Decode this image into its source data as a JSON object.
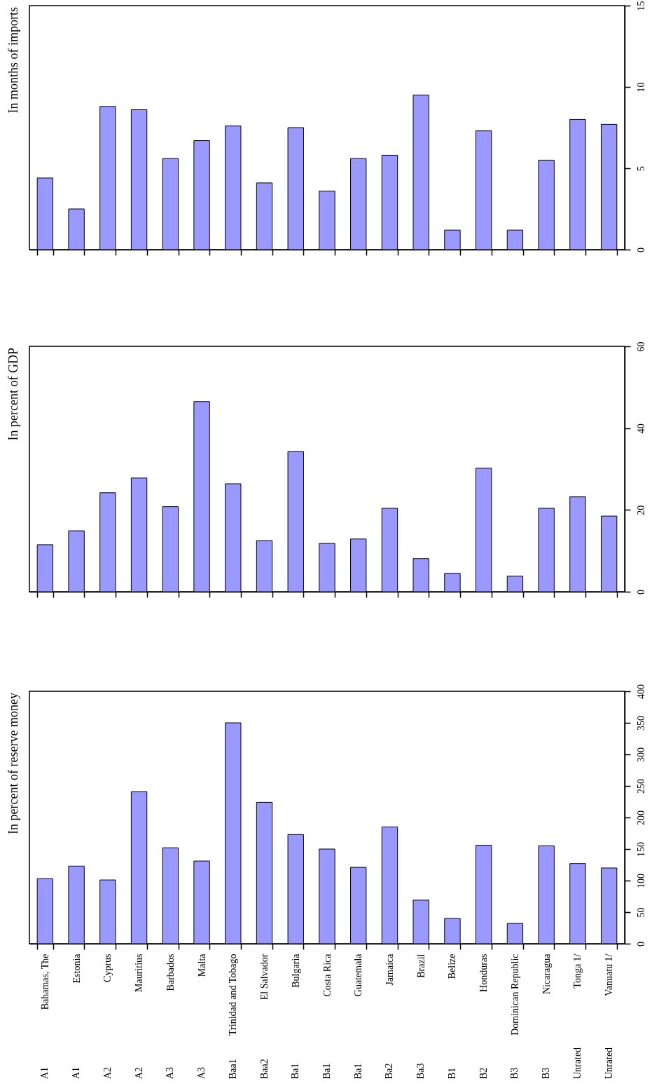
{
  "chart_data": [
    {
      "type": "bar",
      "ylabel": "In months of imports",
      "categories": [
        null,
        null,
        null,
        null,
        null,
        null,
        null,
        null,
        null,
        null,
        null,
        null,
        null,
        null,
        null,
        null,
        null,
        null,
        null
      ],
      "values": [
        4.4,
        2.5,
        8.8,
        8.6,
        5.6,
        6.7,
        7.6,
        4.1,
        7.5,
        3.6,
        5.6,
        5.8,
        9.5,
        1.2,
        7.3,
        1.2,
        5.5,
        8.0,
        7.7
      ],
      "color": "#9999ff",
      "ylim": [
        0,
        15
      ],
      "yticks": [
        0,
        5,
        10,
        15
      ],
      "tick_labels": "y"
    },
    {
      "type": "bar",
      "ylabel": "In percent of GDP",
      "categories": [
        null,
        null,
        null,
        null,
        null,
        null,
        null,
        null,
        null,
        null,
        null,
        null,
        null,
        null,
        null,
        null,
        null,
        null,
        null
      ],
      "values": [
        11.5,
        14.9,
        24.2,
        27.8,
        20.8,
        46.5,
        26.4,
        12.5,
        34.3,
        11.8,
        12.9,
        20.4,
        8.1,
        4.5,
        30.2,
        3.8,
        20.4,
        23.2,
        18.5
      ],
      "color": "#9999ff",
      "ylim": [
        0,
        60
      ],
      "yticks": [
        0,
        20,
        40,
        60
      ],
      "tick_labels": "y"
    },
    {
      "type": "bar",
      "ylabel": "In percent of reserve money",
      "categories": [
        "Bahamas, The",
        "Estonia",
        "Cyprus",
        "Mauritius",
        "Barbados",
        "Malta",
        "Trinidad and Tobago",
        "El Salvador",
        "Bulgaria",
        "Costa Rica",
        "Guatemala",
        "Jamaica",
        "Brazil",
        "Belize",
        "Honduras",
        "Dominican Republic",
        "Nicaragua",
        "Tonga 1/",
        "Vanuatu 1/"
      ],
      "values": [
        103,
        123,
        101,
        241,
        152,
        131,
        350,
        224,
        173,
        150,
        121,
        185,
        69,
        40,
        156,
        32,
        155,
        127,
        120
      ],
      "color": "#9999ff",
      "ylim": [
        0,
        400
      ],
      "yticks": [
        0,
        50,
        100,
        150,
        200,
        250,
        300,
        350,
        400
      ],
      "annotations": [
        "A1",
        "A1",
        "A2",
        "A2",
        "A3",
        "A3",
        "Baa1",
        "Baa2",
        "Ba1",
        "Ba1",
        "Ba1",
        "Ba2",
        "Ba3",
        "B1",
        "B2",
        "B3",
        "B3",
        "Unrated",
        "Unrated"
      ]
    }
  ]
}
